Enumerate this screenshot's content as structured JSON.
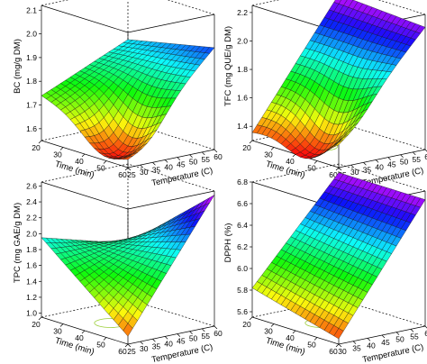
{
  "chart_data": [
    {
      "type": "surface",
      "zlabel": "BC (mg/g DM)",
      "xlabel": "Time (min)",
      "ylabel": "Temperature (C)",
      "x_ticks": [
        "20",
        "30",
        "40",
        "50",
        "60"
      ],
      "y_ticks": [
        "25",
        "30",
        "35",
        "40",
        "45",
        "50",
        "55",
        "60"
      ],
      "z_ticks": [
        "1.6",
        "1.7",
        "1.8",
        "1.9",
        "2.0",
        "2.1"
      ],
      "xlim": [
        20,
        60
      ],
      "ylim": [
        25,
        60
      ],
      "zlim": [
        1.55,
        2.12
      ],
      "corners": {
        "t20_T25": 1.74,
        "t60_T25": 1.62,
        "t20_T60": 1.9,
        "t60_T60": 1.98
      },
      "saddle": {
        "time": 48,
        "temperature": 33,
        "value": 1.57
      }
    },
    {
      "type": "surface",
      "zlabel": "TFC (mg QUE/g DM)",
      "xlabel": "Time (min)",
      "ylabel": "Temperature (C)",
      "x_ticks": [
        "20",
        "30",
        "40",
        "50",
        "60"
      ],
      "y_ticks": [
        "25",
        "30",
        "35",
        "40",
        "45",
        "50",
        "55",
        "60"
      ],
      "z_ticks": [
        "1.4",
        "1.6",
        "1.8",
        "2.0",
        "2.2"
      ],
      "xlim": [
        20,
        60
      ],
      "ylim": [
        25,
        60
      ],
      "zlim": [
        1.3,
        2.25
      ],
      "corners": {
        "t20_T25": 1.36,
        "t60_T25": 1.5,
        "t20_T60": 2.2,
        "t60_T60": 2.16
      },
      "saddle": {
        "time": 45,
        "temperature": 32,
        "value": 1.35
      }
    },
    {
      "type": "surface",
      "zlabel": "TPC (mg GAE/g DM)",
      "xlabel": "Time (min)",
      "ylabel": "Temperature (C)",
      "x_ticks": [
        "20",
        "30",
        "40",
        "50",
        "60"
      ],
      "y_ticks": [
        "25",
        "30",
        "35",
        "40",
        "45",
        "50",
        "55",
        "60"
      ],
      "z_ticks": [
        "1.0",
        "1.2",
        "1.4",
        "1.6",
        "1.8",
        "2.0",
        "2.2",
        "2.4",
        "2.6"
      ],
      "xlim": [
        20,
        60
      ],
      "ylim": [
        25,
        60
      ],
      "zlim": [
        0.95,
        2.65
      ],
      "corners": {
        "t20_T25": 1.95,
        "t60_T25": 1.05,
        "t20_T60": 1.65,
        "t60_T60": 2.6
      }
    },
    {
      "type": "surface",
      "zlabel": "DPPH (%)",
      "xlabel": "Time (min)",
      "ylabel": "Temperature (C)",
      "x_ticks": [
        "20",
        "30",
        "40",
        "50",
        "60"
      ],
      "y_ticks": [
        "30",
        "35",
        "40",
        "45",
        "50",
        "55",
        "60"
      ],
      "z_ticks": [
        "5.6",
        "5.8",
        "6.0",
        "6.2",
        "6.4",
        "6.6",
        "6.8"
      ],
      "xlim": [
        20,
        60
      ],
      "ylim": [
        30,
        60
      ],
      "zlim": [
        5.55,
        6.8
      ],
      "corners": {
        "t20_T30": 5.82,
        "t60_T30": 5.6,
        "t20_T60": 6.72,
        "t60_T60": 6.72
      }
    }
  ]
}
